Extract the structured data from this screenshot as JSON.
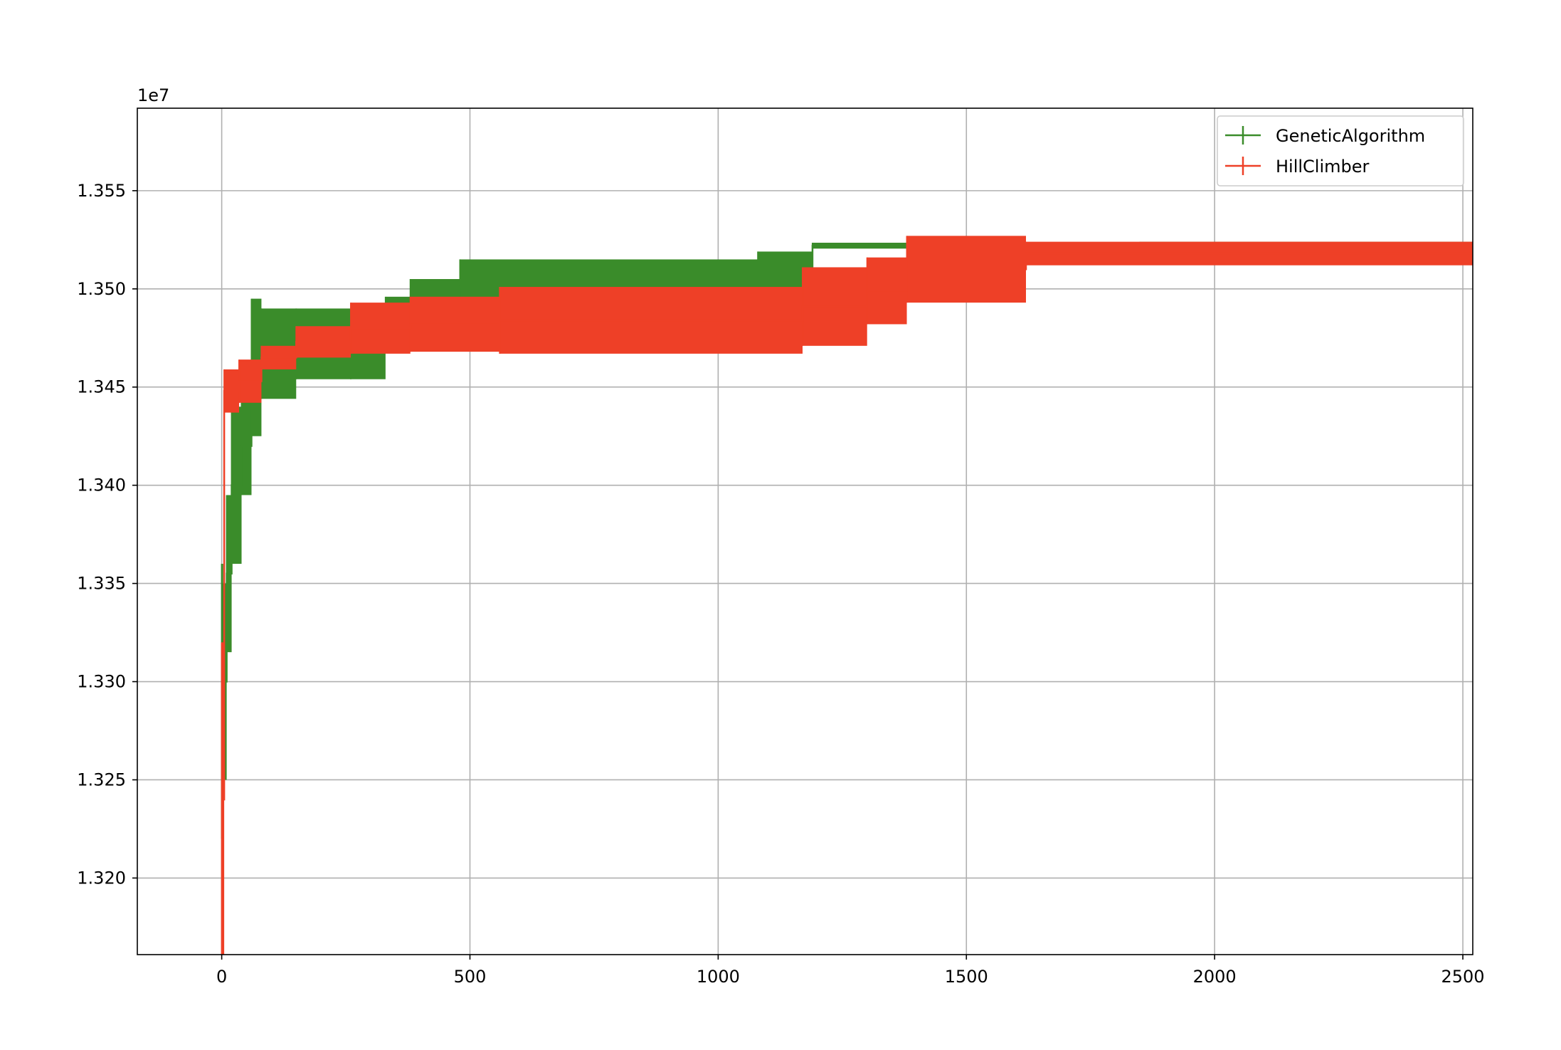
{
  "chart_data": {
    "type": "line",
    "title": "",
    "xlabel": "",
    "ylabel": "",
    "xlim": [
      -170,
      2520
    ],
    "ylim": [
      13161000,
      13592000
    ],
    "y_offset_label": "1e7",
    "x_ticks": [
      {
        "value": 0,
        "label": "0"
      },
      {
        "value": 500,
        "label": "500"
      },
      {
        "value": 1000,
        "label": "1000"
      },
      {
        "value": 1500,
        "label": "1500"
      },
      {
        "value": 2000,
        "label": "2000"
      },
      {
        "value": 2500,
        "label": "2500"
      }
    ],
    "y_ticks": [
      {
        "value": 13200000,
        "label": "1.320"
      },
      {
        "value": 13250000,
        "label": "1.325"
      },
      {
        "value": 13300000,
        "label": "1.330"
      },
      {
        "value": 13350000,
        "label": "1.335"
      },
      {
        "value": 13400000,
        "label": "1.340"
      },
      {
        "value": 13450000,
        "label": "1.345"
      },
      {
        "value": 13500000,
        "label": "1.350"
      },
      {
        "value": 13550000,
        "label": "1.355"
      }
    ],
    "grid": true,
    "legend_position": "top-right",
    "series": [
      {
        "name": "GeneticAlgorithm",
        "color": "#3a8c2a",
        "points": [
          {
            "x": 0,
            "y": 13290000,
            "err": 70000
          },
          {
            "x": 3,
            "y": 13300000,
            "err": 50000
          },
          {
            "x": 10,
            "y": 13355000,
            "err": 40000
          },
          {
            "x": 20,
            "y": 13400000,
            "err": 40000
          },
          {
            "x": 40,
            "y": 13420000,
            "err": 25000
          },
          {
            "x": 60,
            "y": 13460000,
            "err": 35000
          },
          {
            "x": 80,
            "y": 13467000,
            "err": 23000
          },
          {
            "x": 150,
            "y": 13472000,
            "err": 18000
          },
          {
            "x": 260,
            "y": 13472000,
            "err": 18000
          },
          {
            "x": 330,
            "y": 13484000,
            "err": 12000
          },
          {
            "x": 380,
            "y": 13494000,
            "err": 11000
          },
          {
            "x": 480,
            "y": 13501000,
            "err": 14000
          },
          {
            "x": 1080,
            "y": 13503000,
            "err": 16000
          },
          {
            "x": 1190,
            "y": 13522000,
            "err": 1500
          },
          {
            "x": 1850,
            "y": 13523000,
            "err": 1000
          },
          {
            "x": 2520,
            "y": 13523000,
            "err": 1000
          }
        ]
      },
      {
        "name": "HillClimber",
        "color": "#ee4027",
        "points": [
          {
            "x": 0,
            "y": 13240000,
            "err": 80000
          },
          {
            "x": 5,
            "y": 13448000,
            "err": 11000
          },
          {
            "x": 35,
            "y": 13453000,
            "err": 11000
          },
          {
            "x": 80,
            "y": 13465000,
            "err": 6000
          },
          {
            "x": 150,
            "y": 13473000,
            "err": 8000
          },
          {
            "x": 260,
            "y": 13480000,
            "err": 13000
          },
          {
            "x": 380,
            "y": 13482000,
            "err": 14000
          },
          {
            "x": 560,
            "y": 13484000,
            "err": 17000
          },
          {
            "x": 1170,
            "y": 13491000,
            "err": 20000
          },
          {
            "x": 1300,
            "y": 13499000,
            "err": 17000
          },
          {
            "x": 1380,
            "y": 13510000,
            "err": 17000
          },
          {
            "x": 1620,
            "y": 13518000,
            "err": 6000
          },
          {
            "x": 2520,
            "y": 13518000,
            "err": 6000
          }
        ]
      }
    ]
  }
}
